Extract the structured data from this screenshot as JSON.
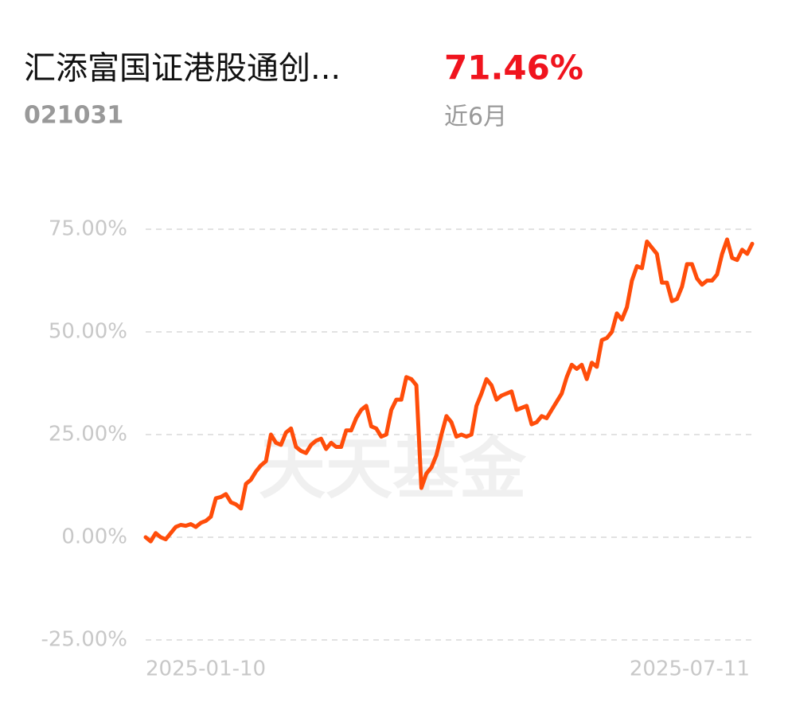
{
  "header": {
    "fund_name": "汇添富国证港股通创...",
    "fund_code": "021031",
    "return": "71.46%",
    "period": "近6月"
  },
  "watermark": "天天基金",
  "chart_data": {
    "type": "line",
    "categories": [
      "2025-01-10",
      null,
      null,
      null,
      null,
      null,
      null,
      null,
      null,
      null,
      null,
      null,
      null,
      null,
      null,
      null,
      null,
      null,
      null,
      null,
      null,
      null,
      null,
      null,
      null,
      null,
      null,
      null,
      null,
      null,
      null,
      null,
      null,
      null,
      null,
      null,
      null,
      null,
      null,
      null,
      null,
      null,
      null,
      null,
      null,
      null,
      null,
      null,
      null,
      null,
      null,
      null,
      null,
      null,
      null,
      null,
      null,
      null,
      null,
      null,
      null,
      null,
      null,
      null,
      null,
      null,
      null,
      null,
      null,
      null,
      null,
      null,
      null,
      null,
      null,
      null,
      null,
      null,
      null,
      null,
      null,
      null,
      null,
      null,
      null,
      null,
      null,
      null,
      null,
      null,
      null,
      null,
      null,
      null,
      null,
      null,
      null,
      null,
      null,
      null,
      null,
      null,
      null,
      null,
      null,
      null,
      null,
      null,
      null,
      null,
      null,
      null,
      null,
      null,
      null,
      null,
      null,
      null,
      null,
      null,
      null,
      "2025-07-11"
    ],
    "series": [
      {
        "color": "#ff4d0a",
        "values": [
          0,
          -1,
          1,
          0,
          -0.5,
          1,
          2.5,
          3,
          2.8,
          3.2,
          2.5,
          3.5,
          4,
          5,
          9.5,
          9.8,
          10.5,
          8.5,
          8,
          7,
          13,
          14,
          16,
          17.5,
          18.5,
          25,
          23,
          22.5,
          25.5,
          26.5,
          22,
          21,
          20.5,
          22.5,
          23.5,
          24,
          21.5,
          23,
          22,
          22,
          26,
          26,
          29,
          31,
          32,
          27,
          26.5,
          24.5,
          25,
          31,
          33.5,
          33.5,
          39,
          38.5,
          37,
          12,
          15.5,
          17,
          20,
          25,
          29.5,
          28,
          24.5,
          25,
          24.5,
          25,
          32,
          35,
          38.5,
          37,
          33.5,
          34.5,
          35,
          35.5,
          31,
          31.5,
          32,
          27.5,
          28,
          29.5,
          29,
          31,
          33,
          35,
          39,
          42,
          41,
          42,
          38.5,
          42.5,
          41.5,
          48,
          48.5,
          50,
          54.5,
          53,
          56,
          62.5,
          66,
          65.5,
          72,
          70.5,
          69,
          62,
          62,
          57.5,
          58,
          61,
          66.5,
          66.5,
          63,
          61.5,
          62.5,
          62.5,
          64,
          69,
          72.5,
          68,
          67.5,
          70,
          69,
          71.46
        ]
      }
    ],
    "ylim": [
      -25,
      75
    ],
    "yticks": [
      {
        "value": -25,
        "label": "-25.00%"
      },
      {
        "value": 0,
        "label": "0.00%"
      },
      {
        "value": 25,
        "label": "25.00%"
      },
      {
        "value": 50,
        "label": "50.00%"
      },
      {
        "value": 75,
        "label": "75.00%"
      }
    ],
    "grid": true
  }
}
